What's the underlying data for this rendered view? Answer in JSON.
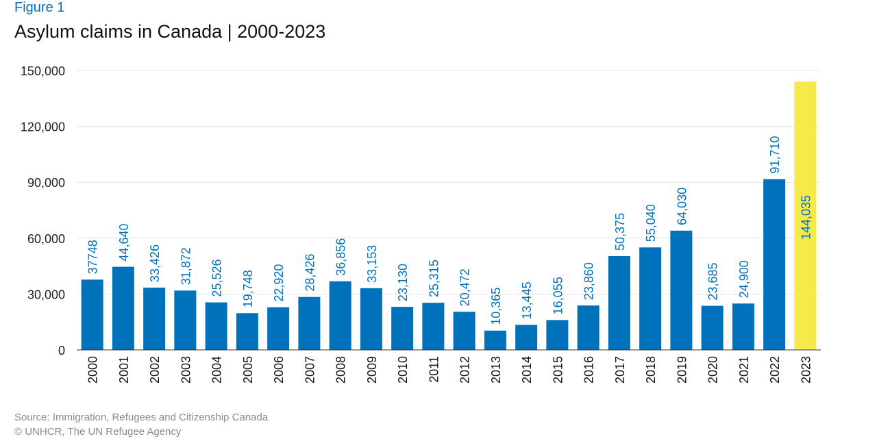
{
  "header": {
    "figure_label": "Figure 1",
    "title": "Asylum claims in Canada | 2000-2023"
  },
  "footer": {
    "source": "Source: Immigration, Refugees and Citizenship Canada",
    "credit": "© UNHCR, The UN Refugee Agency"
  },
  "colors": {
    "bar": "#0072bc",
    "highlight": "#f7e94a",
    "label": "#0072bc",
    "grid": "#e3e3e3",
    "axis": "#333333"
  },
  "chart_data": {
    "type": "bar",
    "title": "Asylum claims in Canada | 2000-2023",
    "xlabel": "",
    "ylabel": "",
    "ylim": [
      0,
      150000
    ],
    "yticks": [
      0,
      30000,
      60000,
      90000,
      120000,
      150000
    ],
    "ytick_labels": [
      "0",
      "30,000",
      "60,000",
      "90,000",
      "120,000",
      "150,000"
    ],
    "grid": true,
    "categories": [
      "2000",
      "2001",
      "2002",
      "2003",
      "2004",
      "2005",
      "2006",
      "2007",
      "2008",
      "2009",
      "2010",
      "2011",
      "2012",
      "2013",
      "2014",
      "2015",
      "2016",
      "2017",
      "2018",
      "2019",
      "2020",
      "2021",
      "2022",
      "2023"
    ],
    "values": [
      37748,
      44640,
      33426,
      31872,
      25526,
      19748,
      22920,
      28426,
      36856,
      33153,
      23130,
      25315,
      20472,
      10365,
      13445,
      16055,
      23860,
      50375,
      55040,
      64030,
      23685,
      24900,
      91710,
      144035
    ],
    "data_labels": [
      "37748",
      "44,640",
      "33,426",
      "31,872",
      "25,526",
      "19,748",
      "22,920",
      "28,426",
      "36,856",
      "33,153",
      "23,130",
      "25,315",
      "20,472",
      "10,365",
      "13,445",
      "16,055",
      "23,860",
      "50,375",
      "55,040",
      "64,030",
      "23,685",
      "24,900",
      "91,710",
      "144,035"
    ],
    "highlight_category": "2023"
  }
}
